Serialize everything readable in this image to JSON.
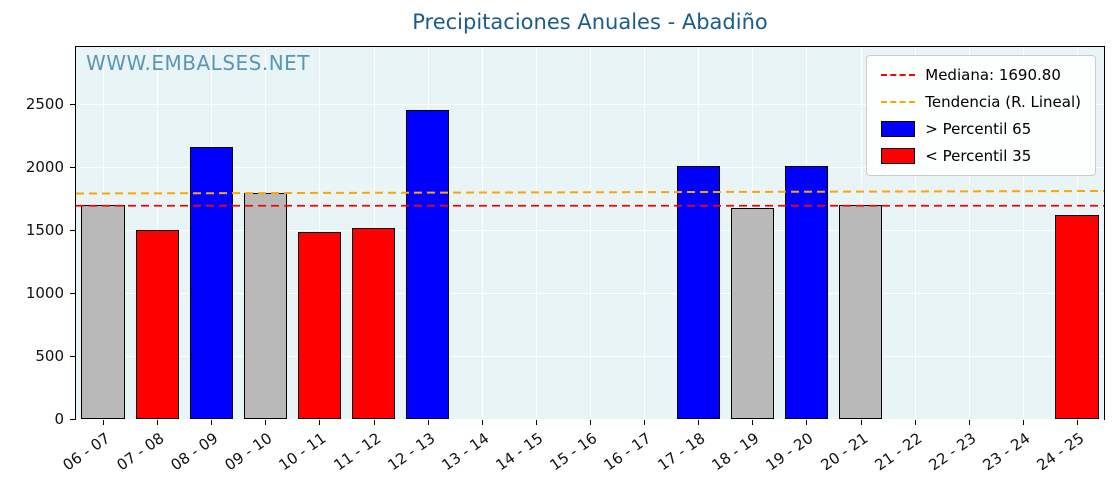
{
  "page": {
    "watermark": "WWW.EMBALSES.NET"
  },
  "chart_data": {
    "type": "bar",
    "title": "Precipitaciones Anuales - Abadiño",
    "xlabel": "",
    "ylabel": "",
    "categories": [
      "06 - 07",
      "07 - 08",
      "08 - 09",
      "09 - 10",
      "10 - 11",
      "11 - 12",
      "12 - 13",
      "13 - 14",
      "14 - 15",
      "15 - 16",
      "16 - 17",
      "17 - 18",
      "18 - 19",
      "19 - 20",
      "20 - 21",
      "21 - 22",
      "22 - 23",
      "23 - 24",
      "24 - 25"
    ],
    "values": [
      1695,
      1500,
      2155,
      1795,
      1480,
      1515,
      2450,
      null,
      null,
      null,
      null,
      2005,
      1675,
      2005,
      1695,
      null,
      null,
      null,
      1615
    ],
    "bar_classes": [
      "mid",
      "below",
      "above",
      "mid",
      "below",
      "below",
      "above",
      null,
      null,
      null,
      null,
      "above",
      "mid",
      "above",
      "mid",
      null,
      null,
      null,
      "below"
    ],
    "median": 1690.8,
    "trend_line": {
      "start_value": 1788,
      "end_value": 1808
    },
    "ylim": [
      0,
      2950
    ],
    "yticks": [
      0,
      500,
      1000,
      1500,
      2000,
      2500
    ],
    "grid": true,
    "legend_position": "top-right",
    "colors": {
      "above": "#0000ff",
      "below": "#ff0000",
      "mid": "#b9b9b9",
      "median_line": "#ff0000",
      "trend_line": "#ffa500",
      "title": "#1a5c8c",
      "watermark": "#4d8cae",
      "plot_bg": "#e8f4f6"
    },
    "legend": [
      {
        "key": "median",
        "label": "Mediana: 1690.80",
        "style": "dashed",
        "color": "#ff0000"
      },
      {
        "key": "trend",
        "label": "Tendencia (R. Lineal)",
        "style": "dashed",
        "color": "#ffa500"
      },
      {
        "key": "above",
        "label": "> Percentil 65",
        "style": "box",
        "color": "#0000ff"
      },
      {
        "key": "below",
        "label": "< Percentil 35",
        "style": "box",
        "color": "#ff0000"
      }
    ]
  }
}
